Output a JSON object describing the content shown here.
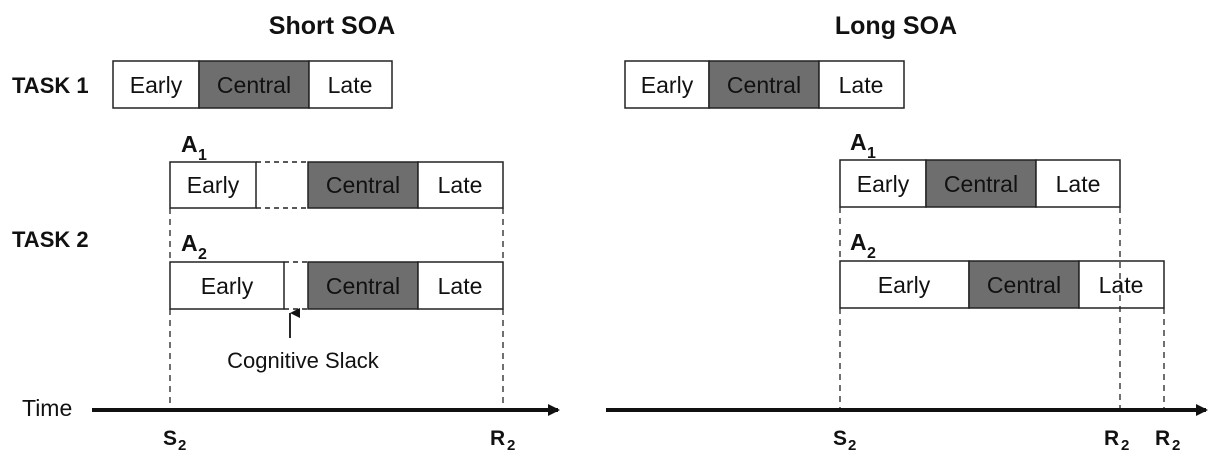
{
  "colors": {
    "central_fill": "#6e6e6e",
    "stage_fill": "#ffffff",
    "stroke": "#222222"
  },
  "panels": {
    "short": {
      "title": "Short SOA"
    },
    "long": {
      "title": "Long SOA"
    }
  },
  "labels": {
    "task1": "TASK 1",
    "task2": "TASK 2",
    "time": "Time",
    "cognitive_slack": "Cognitive Slack",
    "a_letter": "A",
    "a1_sub": "1",
    "a2_sub": "2"
  },
  "stages": {
    "early": "Early",
    "central": "Central",
    "late": "Late"
  },
  "markers": {
    "s": "S",
    "r": "R",
    "sub": "2"
  }
}
